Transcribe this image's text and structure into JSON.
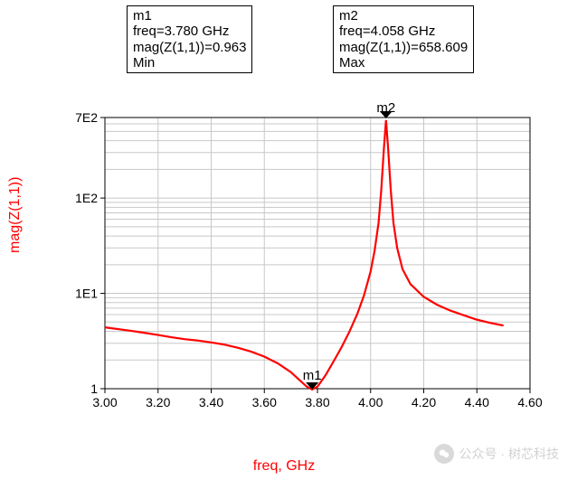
{
  "annotation_boxes": {
    "m1": {
      "name": "m1",
      "freq": "3.780 GHz",
      "mag": "0.963",
      "extreme": "Min"
    },
    "m2": {
      "name": "m2",
      "freq": "4.058 GHz",
      "mag": "658.609",
      "extreme": "Max"
    }
  },
  "chart": {
    "type": "line",
    "xlabel": "freq, GHz",
    "ylabel": "mag(Z(1,1))",
    "xlim": [
      3.0,
      4.6
    ],
    "ylim": [
      1,
      700
    ],
    "yscale": "log",
    "xtick_step": 0.2,
    "xticks": [
      "3.00",
      "3.20",
      "3.40",
      "3.60",
      "3.80",
      "4.00",
      "4.20",
      "4.40",
      "4.60"
    ],
    "ytick_labels": [
      {
        "v": 1,
        "label": "1"
      },
      {
        "v": 10,
        "label": "1E1"
      },
      {
        "v": 100,
        "label": "1E2"
      },
      {
        "v": 700,
        "label": "7E2"
      }
    ],
    "yticks_minor": [
      2,
      3,
      4,
      5,
      6,
      7,
      8,
      9,
      20,
      30,
      40,
      50,
      60,
      70,
      80,
      90,
      200,
      300,
      400,
      500,
      600
    ],
    "series_color": "#ff0000",
    "grid_color": "#c8c8c8",
    "frame_color": "#000000",
    "background_color": "#ffffff",
    "line_width": 2.2,
    "axis_fontsize": 14,
    "label_fontsize": 16,
    "series": [
      {
        "x": 3.0,
        "y": 4.4
      },
      {
        "x": 3.05,
        "y": 4.22
      },
      {
        "x": 3.1,
        "y": 4.04
      },
      {
        "x": 3.15,
        "y": 3.85
      },
      {
        "x": 3.2,
        "y": 3.66
      },
      {
        "x": 3.25,
        "y": 3.47
      },
      {
        "x": 3.3,
        "y": 3.31
      },
      {
        "x": 3.35,
        "y": 3.2
      },
      {
        "x": 3.4,
        "y": 3.06
      },
      {
        "x": 3.45,
        "y": 2.9
      },
      {
        "x": 3.5,
        "y": 2.69
      },
      {
        "x": 3.55,
        "y": 2.45
      },
      {
        "x": 3.6,
        "y": 2.17
      },
      {
        "x": 3.65,
        "y": 1.85
      },
      {
        "x": 3.7,
        "y": 1.49
      },
      {
        "x": 3.73,
        "y": 1.25
      },
      {
        "x": 3.76,
        "y": 1.05
      },
      {
        "x": 3.78,
        "y": 0.963
      },
      {
        "x": 3.8,
        "y": 1.05
      },
      {
        "x": 3.83,
        "y": 1.38
      },
      {
        "x": 3.86,
        "y": 1.92
      },
      {
        "x": 3.89,
        "y": 2.7
      },
      {
        "x": 3.92,
        "y": 3.95
      },
      {
        "x": 3.95,
        "y": 6.1
      },
      {
        "x": 3.975,
        "y": 9.5
      },
      {
        "x": 4.0,
        "y": 17.0
      },
      {
        "x": 4.015,
        "y": 28.0
      },
      {
        "x": 4.03,
        "y": 55.0
      },
      {
        "x": 4.04,
        "y": 120.0
      },
      {
        "x": 4.05,
        "y": 330.0
      },
      {
        "x": 4.058,
        "y": 658.609
      },
      {
        "x": 4.066,
        "y": 330.0
      },
      {
        "x": 4.076,
        "y": 120.0
      },
      {
        "x": 4.086,
        "y": 55.0
      },
      {
        "x": 4.1,
        "y": 30.0
      },
      {
        "x": 4.12,
        "y": 18.0
      },
      {
        "x": 4.15,
        "y": 12.5
      },
      {
        "x": 4.2,
        "y": 9.2
      },
      {
        "x": 4.25,
        "y": 7.6
      },
      {
        "x": 4.3,
        "y": 6.6
      },
      {
        "x": 4.35,
        "y": 5.9
      },
      {
        "x": 4.4,
        "y": 5.3
      },
      {
        "x": 4.45,
        "y": 4.9
      },
      {
        "x": 4.5,
        "y": 4.6
      }
    ],
    "markers": {
      "m1": {
        "label": "m1",
        "x": 3.78,
        "y": 0.963,
        "position": "bottom"
      },
      "m2": {
        "label": "m2",
        "x": 4.058,
        "y": 658.609,
        "position": "top"
      }
    }
  },
  "watermark": {
    "text": "公众号 · 树芯科技"
  }
}
